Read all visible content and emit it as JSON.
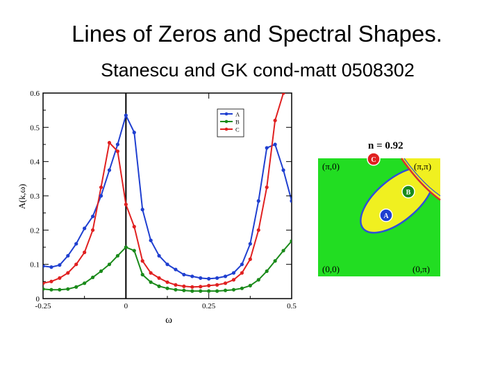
{
  "slide": {
    "title": "Lines of Zeros and Spectral Shapes.",
    "subtitle": "Stanescu and GK cond-matt 0508302"
  },
  "chart_data": {
    "type": "line",
    "xlabel": "ω",
    "ylabel": "A(k,ω)",
    "xlim": [
      -0.25,
      0.5
    ],
    "ylim": [
      0,
      0.6
    ],
    "x_ticks": [
      "-0.25",
      "0",
      "0.25",
      "0.5"
    ],
    "y_ticks": [
      "0",
      "0.1",
      "0.2",
      "0.3",
      "0.4",
      "0.5",
      "0.6"
    ],
    "vertical_line_at_x": 0,
    "legend_position": "top-right",
    "series": [
      {
        "name": "A",
        "color": "#1f3fd0",
        "x": [
          -0.25,
          -0.225,
          -0.2,
          -0.175,
          -0.15,
          -0.125,
          -0.1,
          -0.075,
          -0.05,
          -0.025,
          0,
          0.025,
          0.05,
          0.075,
          0.1,
          0.125,
          0.15,
          0.175,
          0.2,
          0.225,
          0.25,
          0.275,
          0.3,
          0.325,
          0.35,
          0.375,
          0.4,
          0.425,
          0.45,
          0.475,
          0.5
        ],
        "y": [
          0.095,
          0.092,
          0.098,
          0.125,
          0.16,
          0.205,
          0.24,
          0.3,
          0.375,
          0.45,
          0.535,
          0.485,
          0.26,
          0.17,
          0.125,
          0.1,
          0.085,
          0.07,
          0.065,
          0.06,
          0.058,
          0.06,
          0.065,
          0.075,
          0.1,
          0.16,
          0.285,
          0.44,
          0.45,
          0.375,
          0.285
        ]
      },
      {
        "name": "B",
        "color": "#1a8a1a",
        "x": [
          -0.25,
          -0.225,
          -0.2,
          -0.175,
          -0.15,
          -0.125,
          -0.1,
          -0.075,
          -0.05,
          -0.025,
          0,
          0.025,
          0.05,
          0.075,
          0.1,
          0.125,
          0.15,
          0.175,
          0.2,
          0.225,
          0.25,
          0.275,
          0.3,
          0.325,
          0.35,
          0.375,
          0.4,
          0.425,
          0.45,
          0.475,
          0.5
        ],
        "y": [
          0.028,
          0.026,
          0.026,
          0.028,
          0.034,
          0.045,
          0.062,
          0.08,
          0.1,
          0.125,
          0.15,
          0.14,
          0.07,
          0.048,
          0.036,
          0.03,
          0.026,
          0.024,
          0.022,
          0.022,
          0.022,
          0.022,
          0.024,
          0.026,
          0.03,
          0.038,
          0.055,
          0.08,
          0.11,
          0.14,
          0.168
        ]
      },
      {
        "name": "C",
        "color": "#e02020",
        "x": [
          -0.25,
          -0.225,
          -0.2,
          -0.175,
          -0.15,
          -0.125,
          -0.1,
          -0.075,
          -0.05,
          -0.025,
          0,
          0.025,
          0.05,
          0.075,
          0.1,
          0.125,
          0.15,
          0.175,
          0.2,
          0.225,
          0.25,
          0.275,
          0.3,
          0.325,
          0.35,
          0.375,
          0.4,
          0.425,
          0.45,
          0.475,
          0.5
        ],
        "y": [
          0.045,
          0.05,
          0.06,
          0.075,
          0.1,
          0.135,
          0.2,
          0.325,
          0.455,
          0.43,
          0.275,
          0.21,
          0.11,
          0.075,
          0.06,
          0.048,
          0.04,
          0.036,
          0.034,
          0.035,
          0.038,
          0.04,
          0.045,
          0.055,
          0.075,
          0.115,
          0.2,
          0.325,
          0.52,
          0.6,
          0.63
        ]
      }
    ]
  },
  "inset": {
    "title": "n = 0.92",
    "corner_labels": {
      "top_left": "(π,0)",
      "top_right": "(π,π)",
      "bottom_left": "(0,0)",
      "bottom_right": "(0,π)"
    },
    "points": [
      {
        "label": "A",
        "color": "#1f3fd0"
      },
      {
        "label": "B",
        "color": "#1a8a1a"
      },
      {
        "label": "C",
        "color": "#e02020"
      }
    ],
    "colors": {
      "background": "#22dd22",
      "pocket": "#f0f020",
      "contour": "#2f4fd8",
      "zero_line": "#d63030"
    }
  }
}
